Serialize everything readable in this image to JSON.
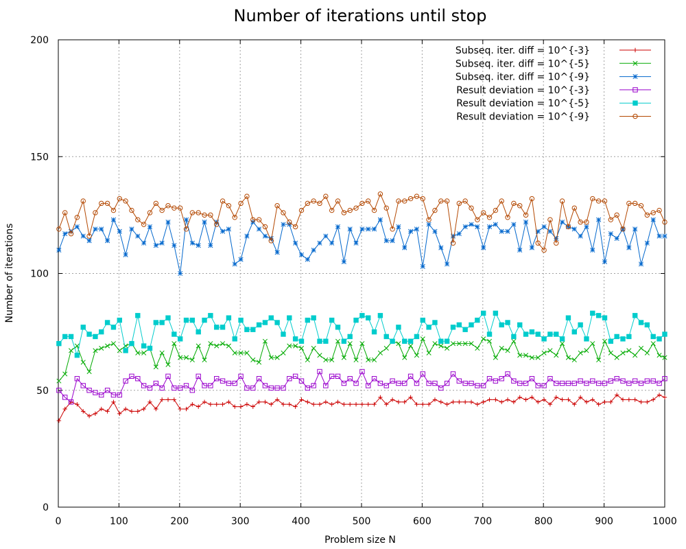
{
  "chart_data": {
    "type": "line",
    "title": "Number of iterations until stop",
    "xlabel": "Problem size N",
    "ylabel": "Number of iterations",
    "xlim": [
      0,
      1000
    ],
    "ylim": [
      0,
      200
    ],
    "xticks": [
      "0",
      "100",
      "200",
      "300",
      "400",
      "500",
      "600",
      "700",
      "800",
      "900",
      "1000"
    ],
    "yticks": [
      "0",
      "50",
      "100",
      "150",
      "200"
    ],
    "grid": true,
    "legend_position": "top-right",
    "x": [
      1,
      11,
      21,
      31,
      41,
      51,
      61,
      71,
      81,
      91,
      101,
      111,
      121,
      131,
      141,
      151,
      161,
      171,
      181,
      191,
      201,
      211,
      221,
      231,
      241,
      251,
      261,
      271,
      281,
      291,
      301,
      311,
      321,
      331,
      341,
      351,
      361,
      371,
      381,
      391,
      401,
      411,
      421,
      431,
      441,
      451,
      461,
      471,
      481,
      491,
      501,
      511,
      521,
      531,
      541,
      551,
      561,
      571,
      581,
      591,
      601,
      611,
      621,
      631,
      641,
      651,
      661,
      671,
      681,
      691,
      701,
      711,
      721,
      731,
      741,
      751,
      761,
      771,
      781,
      791,
      801,
      811,
      821,
      831,
      841,
      851,
      861,
      871,
      881,
      891,
      901,
      911,
      921,
      931,
      941,
      951,
      961,
      971,
      981,
      991,
      1000
    ],
    "series": [
      {
        "name": "Subseq. iter. diff = 10^{-3}",
        "color": "#cc0000",
        "marker": "plus",
        "values": [
          37,
          42,
          45,
          44,
          41,
          39,
          40,
          42,
          41,
          45,
          40,
          42,
          41,
          41,
          42,
          45,
          42,
          46,
          46,
          46,
          42,
          42,
          44,
          43,
          45,
          44,
          44,
          44,
          45,
          43,
          43,
          44,
          43,
          45,
          45,
          44,
          46,
          44,
          44,
          43,
          46,
          45,
          44,
          44,
          45,
          44,
          45,
          44,
          44,
          44,
          44,
          44,
          44,
          47,
          44,
          46,
          45,
          45,
          47,
          44,
          44,
          44,
          46,
          45,
          44,
          45,
          45,
          45,
          45,
          44,
          45,
          46,
          46,
          45,
          46,
          45,
          47,
          46,
          47,
          45,
          46,
          44,
          47,
          46,
          46,
          44,
          47,
          45,
          46,
          44,
          45,
          45,
          48,
          46,
          46,
          46,
          45,
          45,
          46,
          48,
          47
        ]
      },
      {
        "name": "Subseq. iter. diff = 10^{-5}",
        "color": "#00aa00",
        "marker": "cross",
        "values": [
          54,
          57,
          67,
          69,
          62,
          58,
          67,
          68,
          69,
          70,
          67,
          69,
          70,
          66,
          66,
          68,
          60,
          66,
          61,
          70,
          64,
          64,
          63,
          69,
          63,
          70,
          69,
          70,
          69,
          66,
          66,
          66,
          63,
          62,
          71,
          64,
          64,
          66,
          69,
          69,
          68,
          63,
          68,
          65,
          63,
          63,
          71,
          64,
          70,
          63,
          70,
          63,
          63,
          66,
          68,
          71,
          70,
          64,
          69,
          65,
          72,
          66,
          70,
          69,
          68,
          70,
          70,
          70,
          70,
          68,
          72,
          71,
          64,
          68,
          67,
          71,
          65,
          65,
          64,
          64,
          66,
          67,
          65,
          70,
          64,
          63,
          66,
          67,
          70,
          63,
          71,
          66,
          64,
          66,
          67,
          65,
          68,
          66,
          70,
          65,
          64
        ]
      },
      {
        "name": "Subseq. iter. diff = 10^{-9}",
        "color": "#0066cc",
        "marker": "star",
        "values": [
          110,
          117,
          118,
          120,
          116,
          114,
          119,
          119,
          114,
          123,
          118,
          108,
          119,
          116,
          113,
          120,
          112,
          113,
          122,
          112,
          100,
          123,
          113,
          112,
          122,
          112,
          122,
          118,
          119,
          104,
          106,
          116,
          122,
          119,
          116,
          115,
          109,
          121,
          121,
          113,
          108,
          106,
          110,
          113,
          116,
          113,
          120,
          105,
          119,
          113,
          119,
          119,
          119,
          123,
          114,
          114,
          120,
          111,
          118,
          119,
          103,
          121,
          118,
          111,
          104,
          116,
          117,
          120,
          121,
          120,
          111,
          120,
          121,
          118,
          118,
          121,
          110,
          122,
          111,
          118,
          120,
          118,
          115,
          122,
          120,
          119,
          116,
          120,
          110,
          123,
          105,
          117,
          115,
          119,
          111,
          119,
          104,
          113,
          123,
          116,
          116
        ]
      },
      {
        "name": "Result deviation = 10^{-3}",
        "color": "#9900cc",
        "marker": "open-square",
        "values": [
          50,
          47,
          45,
          55,
          52,
          50,
          49,
          48,
          50,
          48,
          48,
          54,
          56,
          55,
          52,
          51,
          53,
          51,
          56,
          51,
          51,
          52,
          50,
          56,
          52,
          52,
          55,
          54,
          53,
          53,
          56,
          51,
          51,
          55,
          52,
          51,
          51,
          51,
          55,
          56,
          54,
          51,
          52,
          58,
          52,
          56,
          56,
          53,
          55,
          53,
          58,
          52,
          55,
          53,
          52,
          54,
          53,
          53,
          56,
          53,
          57,
          53,
          53,
          51,
          53,
          57,
          54,
          53,
          53,
          52,
          52,
          55,
          54,
          55,
          57,
          54,
          53,
          53,
          55,
          52,
          52,
          55,
          53,
          53,
          53,
          53,
          54,
          53,
          54,
          53,
          53,
          54,
          55,
          54,
          53,
          54,
          53,
          54,
          54,
          53,
          55
        ]
      },
      {
        "name": "Result deviation = 10^{-5}",
        "color": "#00cccc",
        "marker": "filled-square",
        "values": [
          70,
          73,
          73,
          65,
          77,
          74,
          73,
          75,
          79,
          77,
          80,
          67,
          70,
          82,
          69,
          68,
          79,
          79,
          81,
          74,
          72,
          80,
          80,
          75,
          80,
          82,
          77,
          77,
          81,
          72,
          80,
          76,
          76,
          78,
          79,
          81,
          79,
          74,
          81,
          72,
          71,
          80,
          81,
          71,
          71,
          80,
          77,
          71,
          73,
          80,
          82,
          81,
          75,
          82,
          73,
          71,
          77,
          71,
          71,
          73,
          80,
          77,
          79,
          71,
          71,
          77,
          78,
          76,
          78,
          80,
          83,
          74,
          83,
          78,
          79,
          73,
          78,
          74,
          75,
          74,
          72,
          74,
          74,
          72,
          81,
          75,
          78,
          72,
          83,
          82,
          81,
          71,
          73,
          72,
          73,
          82,
          79,
          78,
          73,
          72,
          74
        ]
      },
      {
        "name": "Result deviation = 10^{-9}",
        "color": "#b34700",
        "marker": "open-circle",
        "values": [
          119,
          126,
          117,
          124,
          131,
          116,
          126,
          130,
          130,
          127,
          132,
          131,
          127,
          123,
          121,
          126,
          130,
          127,
          129,
          128,
          128,
          119,
          126,
          126,
          125,
          125,
          121,
          131,
          129,
          124,
          130,
          133,
          123,
          123,
          120,
          114,
          129,
          126,
          122,
          120,
          127,
          130,
          131,
          130,
          133,
          127,
          131,
          126,
          127,
          128,
          130,
          131,
          127,
          134,
          128,
          119,
          131,
          131,
          132,
          133,
          132,
          123,
          127,
          131,
          131,
          113,
          130,
          131,
          128,
          123,
          126,
          124,
          127,
          131,
          124,
          130,
          129,
          125,
          132,
          113,
          110,
          123,
          113,
          131,
          120,
          128,
          122,
          122,
          132,
          131,
          131,
          123,
          125,
          119,
          130,
          130,
          129,
          125,
          126,
          127,
          122
        ]
      }
    ]
  }
}
